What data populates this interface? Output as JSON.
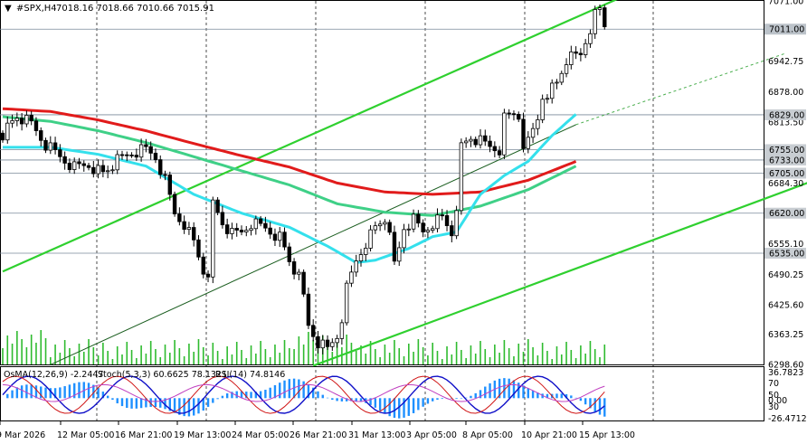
{
  "header": {
    "symbol": "#SPX,H4",
    "ohlc": "7018.16 7018.66 7010.66 7015.91"
  },
  "sub_header": {
    "osma": "OsMA(12,26,9) -2.2447",
    "stoch": "Stoch(5,3,3) 60.6625 78.1321",
    "rsi": "RSI(14) 74.8146"
  },
  "price_axis": [
    "7071.00",
    "6942.75",
    "6878.00",
    "6813.50",
    "6684.30",
    "6555.10",
    "6490.25",
    "6425.60",
    "6363.25",
    "6298.60"
  ],
  "level_tags": [
    "7011.00",
    "6829.00",
    "6755.00",
    "6733.00",
    "6705.00",
    "6620.00",
    "6535.00"
  ],
  "indicator_axis": [
    "36.7823",
    "70",
    "50",
    "30",
    "0.00",
    "-26.4712"
  ],
  "time_axis": [
    "9 Mar 2026",
    "12 Mar 05:00",
    "16 Mar 21:00",
    "19 Mar 13:00",
    "24 Mar 05:00",
    "26 Mar 21:00",
    "31 Mar 13:00",
    "3 Apr 05:00",
    "8 Apr 05:00",
    "10 Apr 21:00",
    "15 Apr 13:00"
  ],
  "colors": {
    "bull": "#000000",
    "bear": "#000000",
    "ema_slow": "#e11b1b",
    "ema_mid": "#3fd087",
    "ema_fast": "#34e0ec",
    "channel": "#2fd02f",
    "volume": "#2fbb2f",
    "osma": "#1e90ff",
    "stoch_main": "#1010c8",
    "stoch_signal": "#d01515",
    "rsi": "#c040c0"
  },
  "chart_data": {
    "type": "candlestick",
    "symbol": "#SPX",
    "timeframe": "H4",
    "ylim": [
      6298.6,
      7071.0
    ],
    "last_price": 7011.0,
    "horizontal_levels": [
      7011.0,
      6829.0,
      6755.0,
      6733.0,
      6705.0,
      6620.0,
      6535.0
    ],
    "close_path": [
      [
        0,
        6790
      ],
      [
        3,
        6825
      ],
      [
        6,
        6808
      ],
      [
        9,
        6765
      ],
      [
        12,
        6740
      ],
      [
        15,
        6718
      ],
      [
        18,
        6725
      ],
      [
        21,
        6705
      ],
      [
        24,
        6730
      ],
      [
        27,
        6748
      ],
      [
        30,
        6755
      ],
      [
        32,
        6740
      ],
      [
        34,
        6690
      ],
      [
        36,
        6620
      ],
      [
        38,
        6600
      ],
      [
        40,
        6560
      ],
      [
        42,
        6500
      ],
      [
        43,
        6470
      ],
      [
        44,
        6640
      ],
      [
        46,
        6600
      ],
      [
        48,
        6575
      ],
      [
        50,
        6580
      ],
      [
        52,
        6600
      ],
      [
        55,
        6590
      ],
      [
        58,
        6570
      ],
      [
        60,
        6520
      ],
      [
        62,
        6480
      ],
      [
        63,
        6440
      ],
      [
        64,
        6380
      ],
      [
        66,
        6345
      ],
      [
        68,
        6330
      ],
      [
        70,
        6360
      ],
      [
        71,
        6400
      ],
      [
        72,
        6460
      ],
      [
        74,
        6520
      ],
      [
        76,
        6560
      ],
      [
        78,
        6590
      ],
      [
        80,
        6610
      ],
      [
        81,
        6565
      ],
      [
        82,
        6510
      ],
      [
        83,
        6545
      ],
      [
        84,
        6590
      ],
      [
        86,
        6605
      ],
      [
        88,
        6580
      ],
      [
        90,
        6600
      ],
      [
        92,
        6610
      ],
      [
        94,
        6580
      ],
      [
        95,
        6640
      ],
      [
        96,
        6760
      ],
      [
        98,
        6780
      ],
      [
        100,
        6770
      ],
      [
        102,
        6760
      ],
      [
        104,
        6755
      ],
      [
        105,
        6820
      ],
      [
        107,
        6830
      ],
      [
        108,
        6826
      ],
      [
        109,
        6770
      ],
      [
        110,
        6770
      ],
      [
        112,
        6820
      ],
      [
        113,
        6870
      ],
      [
        116,
        6895
      ],
      [
        118,
        6945
      ],
      [
        121,
        6955
      ],
      [
        122,
        6985
      ],
      [
        124,
        7040
      ],
      [
        125,
        7050
      ],
      [
        126,
        7016
      ]
    ],
    "ema_fast": [
      [
        0,
        6760
      ],
      [
        10,
        6760
      ],
      [
        20,
        6745
      ],
      [
        30,
        6720
      ],
      [
        40,
        6660
      ],
      [
        50,
        6620
      ],
      [
        60,
        6590
      ],
      [
        68,
        6550
      ],
      [
        74,
        6515
      ],
      [
        78,
        6520
      ],
      [
        85,
        6545
      ],
      [
        90,
        6570
      ],
      [
        95,
        6580
      ],
      [
        100,
        6660
      ],
      [
        105,
        6700
      ],
      [
        110,
        6730
      ],
      [
        115,
        6785
      ],
      [
        120,
        6830
      ]
    ],
    "ema_mid": [
      [
        0,
        6825
      ],
      [
        10,
        6815
      ],
      [
        20,
        6795
      ],
      [
        30,
        6770
      ],
      [
        40,
        6740
      ],
      [
        50,
        6710
      ],
      [
        60,
        6680
      ],
      [
        70,
        6640
      ],
      [
        80,
        6622
      ],
      [
        90,
        6615
      ],
      [
        100,
        6635
      ],
      [
        110,
        6670
      ],
      [
        120,
        6720
      ]
    ],
    "ema_slow": [
      [
        0,
        6842
      ],
      [
        10,
        6836
      ],
      [
        20,
        6818
      ],
      [
        30,
        6795
      ],
      [
        40,
        6768
      ],
      [
        50,
        6742
      ],
      [
        60,
        6718
      ],
      [
        70,
        6684
      ],
      [
        80,
        6665
      ],
      [
        90,
        6660
      ],
      [
        100,
        6665
      ],
      [
        110,
        6690
      ],
      [
        120,
        6730
      ]
    ],
    "channel_lines": [
      {
        "name": "upper",
        "points": [
          [
            0,
            6496
          ],
          [
            130,
            7081
          ]
        ]
      },
      {
        "name": "lower",
        "points": [
          [
            65,
            6296
          ],
          [
            170,
            6690
          ]
        ]
      },
      {
        "name": "median",
        "points": [
          [
            10,
            6298
          ],
          [
            120,
            6808
          ]
        ]
      },
      {
        "name": "median-extension",
        "points": [
          [
            120,
            6808
          ],
          [
            164,
            6960
          ]
        ],
        "dashed": true
      }
    ],
    "indicator_ylim": [
      -26.4712,
      36.7823
    ]
  }
}
